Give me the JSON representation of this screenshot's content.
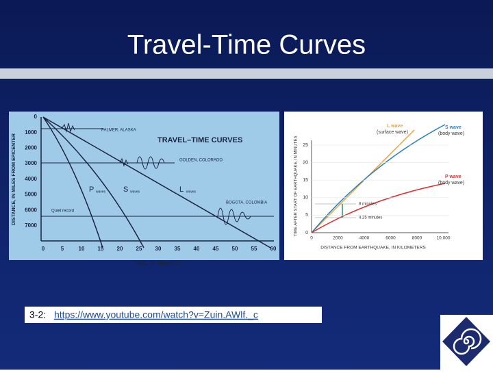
{
  "slide": {
    "title": "Travel-Time Curves",
    "left_figure": {
      "title": "TRAVEL–TIME CURVES",
      "y_label": "DISTANCE, IN MILES FROM EPICENTER",
      "x_label": "TIME, IN MINUTES",
      "yticks": [
        "0",
        "1000",
        "2000",
        "3000",
        "4000",
        "5000",
        "6000",
        "7000"
      ],
      "xticks": [
        "0",
        "5",
        "10",
        "15",
        "20",
        "25",
        "30",
        "35",
        "40",
        "45",
        "50",
        "55",
        "60"
      ],
      "stations": [
        "PALMER, ALASKA",
        "GOLDEN, COLORADO",
        "BOGOTA, COLOMBIA"
      ],
      "quiet": "Quiet record",
      "waves": [
        {
          "letter": "P",
          "word": "waves"
        },
        {
          "letter": "S",
          "word": "waves"
        },
        {
          "letter": "L",
          "word": "waves"
        }
      ]
    },
    "right_figure": {
      "y_label": "TIME AFTER START OF EARTHQUAKE, IN MINUTES",
      "x_label": "DISTANCE FROM EARTHQUAKE, IN KILOMETERS",
      "yticks": [
        "0",
        "5",
        "10",
        "15",
        "20",
        "25"
      ],
      "xticks": [
        "0",
        "2000",
        "4000",
        "6000",
        "8000",
        "10,000"
      ],
      "legend": [
        {
          "name": "L wave",
          "note": "(surface wave)"
        },
        {
          "name": "S wave",
          "note": "(body wave)"
        },
        {
          "name": "P wave",
          "note": "(body wave)"
        }
      ],
      "annotations": [
        "8 minutes",
        "4.25 minutes"
      ]
    },
    "caption": {
      "prefix": "3-2:",
      "link": "https://www.youtube.com/watch?v=Zuin.AWlf._c"
    }
  }
}
